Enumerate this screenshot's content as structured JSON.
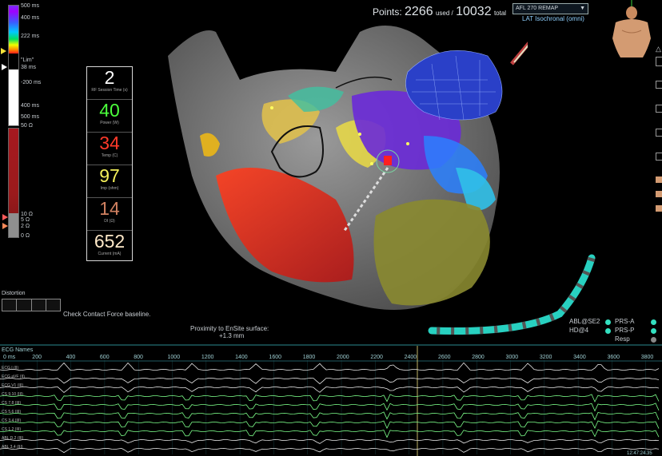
{
  "lat_scale": {
    "ticks": [
      "500 ms",
      "400 ms",
      "222 ms",
      "\"Lim\"",
      "38 ms",
      "-200 ms",
      "400 ms",
      "500 ms"
    ]
  },
  "impedance_scale": {
    "top_label": "50 Ω",
    "ticks": [
      "10 Ω",
      "5 Ω",
      "2 Ω",
      "0 Ω"
    ]
  },
  "rf_panel": [
    {
      "value": "2",
      "label": "RF Session Time (s)",
      "color": "#ffffff"
    },
    {
      "value": "40",
      "label": "Power (W)",
      "color": "#4bff3c"
    },
    {
      "value": "34",
      "label": "Temp (C)",
      "color": "#ff3a2a"
    },
    {
      "value": "97",
      "label": "Imp (ohm)",
      "color": "#f5f05a"
    },
    {
      "value": "14",
      "label": "DI (Ω)",
      "color": "#d08060"
    },
    {
      "value": "652",
      "label": "Current (mA)",
      "color": "#ffe9c8"
    }
  ],
  "distortion": {
    "label": "Distortion",
    "message": "Check Contact Force baseline."
  },
  "points": {
    "prefix": "Points:",
    "used_value": "2266",
    "used_suffix": "used /",
    "total_value": "10032",
    "total_suffix": "total"
  },
  "map_selector": {
    "value": "AFL 270 REMAP",
    "subtitle": "LAT Isochronal (omni)"
  },
  "proximity": {
    "line1": "Proximity to EnSite surface:",
    "line2": "+1.3 mm"
  },
  "catheter_legend": [
    {
      "label": "ABL@SE2",
      "color": "#33e0c0"
    },
    {
      "label": "HD@4",
      "color": "#33e0c0"
    },
    {
      "label": "PRS-A",
      "color": "#33e0c0"
    },
    {
      "label": "PRS-P",
      "color": "#33e0c0"
    },
    {
      "label": "Resp",
      "color": "#888888"
    }
  ],
  "ecg": {
    "top_label": "ECG Names",
    "axis_ms": [
      "0 ms",
      "200",
      "400",
      "600",
      "800",
      "1000",
      "1200",
      "1400",
      "1600",
      "1800",
      "2000",
      "2200",
      "2400",
      "2600",
      "2800",
      "3000",
      "3200",
      "3400",
      "3600",
      "3800"
    ],
    "channels": [
      "ECG I (II)",
      "ECG aVF (II)",
      "ECG V1 (III)",
      "CS 9,10 (III)",
      "CS 7,8 (III)",
      "CS 5,6 (III)",
      "CS 3,4 (III)",
      "CS 1,2 (III)",
      "ABL D,2 (III)",
      "ABL 3,4 (III)"
    ],
    "timestamp": "12:47:24.35"
  },
  "colors": {
    "accent": "#33e0c0",
    "grid": "#1f5a60"
  }
}
